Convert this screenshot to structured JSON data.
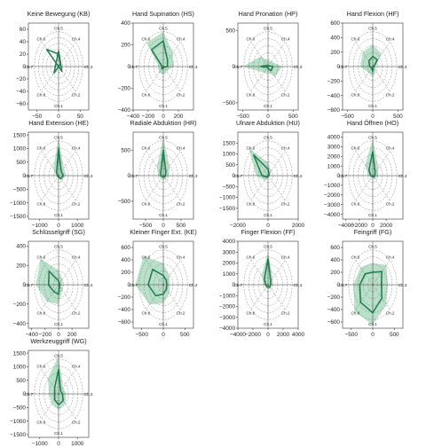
{
  "chart_data": [
    {
      "type": "radar",
      "title": "Keine Bewegung (KB)",
      "axes": [
        "Ch.1",
        "Ch.2",
        "Ch.3",
        "Ch.4",
        "Ch.5",
        "Ch.6",
        "Ch.7",
        "Ch.8"
      ],
      "series": [
        {
          "values": [
            -25,
            11,
            0,
            6,
            20,
            39,
            0,
            15
          ]
        }
      ],
      "band": [],
      "x_ticks": [
        -50,
        0,
        50
      ],
      "xlim": [
        -70,
        70
      ],
      "y_ticks": [
        -60,
        -40,
        -20,
        0,
        20,
        40,
        60
      ],
      "ylim": [
        -70,
        70
      ],
      "grid_rings": 6
    },
    {
      "type": "radar",
      "title": "Hand Supination (HS)",
      "axes": [
        "Ch.1",
        "Ch.2",
        "Ch.3",
        "Ch.4",
        "Ch.5",
        "Ch.6",
        "Ch.7",
        "Ch.8"
      ],
      "series": [
        {
          "values": [
            15,
            10,
            55,
            80,
            235,
            220,
            15,
            30
          ]
        }
      ],
      "band": [
        70,
        60,
        140,
        180,
        320,
        310,
        60,
        80
      ],
      "x_ticks": [
        -400,
        -200,
        0,
        200
      ],
      "xlim": [
        -400,
        400
      ],
      "y_ticks": [
        -400,
        -200,
        0,
        200,
        400
      ],
      "ylim": [
        -400,
        400
      ],
      "grid_rings": 5
    },
    {
      "type": "radar",
      "title": "Hand Pronation (HP)",
      "axes": [
        "Ch.1",
        "Ch.2",
        "Ch.3",
        "Ch.4",
        "Ch.5",
        "Ch.6",
        "Ch.7",
        "Ch.8"
      ],
      "series": [
        {
          "values": [
            25,
            80,
            100,
            15,
            15,
            25,
            150,
            15
          ]
        }
      ],
      "band": [
        80,
        200,
        280,
        100,
        80,
        200,
        500,
        120
      ],
      "x_ticks": [
        -500,
        0,
        500
      ],
      "xlim": [
        -600,
        600
      ],
      "y_ticks": [
        -500,
        0,
        500
      ],
      "ylim": [
        -600,
        600
      ],
      "grid_rings": 5
    },
    {
      "type": "radar",
      "title": "Hand Flexion (HF)",
      "axes": [
        "Ch.1",
        "Ch.2",
        "Ch.3",
        "Ch.4",
        "Ch.5",
        "Ch.6",
        "Ch.7",
        "Ch.8"
      ],
      "series": [
        {
          "values": [
            70,
            15,
            20,
            130,
            140,
            110,
            60,
            30
          ]
        }
      ],
      "band": [
        150,
        80,
        60,
        250,
        300,
        280,
        250,
        120
      ],
      "x_ticks": [
        -500,
        0,
        500
      ],
      "xlim": [
        -600,
        600
      ],
      "y_ticks": [
        -600,
        -400,
        -200,
        0,
        200,
        400,
        600
      ],
      "ylim": [
        -600,
        600
      ],
      "grid_rings": 5
    },
    {
      "type": "radar",
      "title": "Hand Extension (HE)",
      "axes": [
        "Ch.1",
        "Ch.2",
        "Ch.3",
        "Ch.4",
        "Ch.5",
        "Ch.6",
        "Ch.7",
        "Ch.8"
      ],
      "series": [
        {
          "values": [
            50,
            150,
            250,
            200,
            1000,
            150,
            50,
            50
          ]
        }
      ],
      "band": [
        100,
        250,
        400,
        400,
        1400,
        400,
        150,
        100
      ],
      "x_ticks": [
        -1000,
        0,
        1000
      ],
      "xlim": [
        -1600,
        1600
      ],
      "y_ticks": [
        -1500,
        -1000,
        -500,
        0,
        500,
        1000,
        1500
      ],
      "ylim": [
        -1600,
        1600
      ],
      "grid_rings": 5
    },
    {
      "type": "radar",
      "title": "Radiale Abduktion (HR)",
      "axes": [
        "Ch.1",
        "Ch.2",
        "Ch.3",
        "Ch.4",
        "Ch.5",
        "Ch.6",
        "Ch.7",
        "Ch.8"
      ],
      "series": [
        {
          "values": [
            30,
            40,
            60,
            100,
            500,
            100,
            70,
            30
          ]
        }
      ],
      "band": [
        80,
        100,
        150,
        250,
        750,
        250,
        150,
        80
      ],
      "x_ticks": [
        -500,
        0,
        500
      ],
      "xlim": [
        -850,
        850
      ],
      "y_ticks": [
        -500,
        0,
        500
      ],
      "ylim": [
        -850,
        850
      ],
      "grid_rings": 5
    },
    {
      "type": "radar",
      "title": "Ulnare Abduktion (HU)",
      "axes": [
        "Ch.1",
        "Ch.2",
        "Ch.3",
        "Ch.4",
        "Ch.5",
        "Ch.6",
        "Ch.7",
        "Ch.8"
      ],
      "series": [
        {
          "values": [
            50,
            30,
            50,
            100,
            300,
            1350,
            400,
            100
          ]
        }
      ],
      "band": [
        150,
        100,
        150,
        300,
        600,
        1800,
        800,
        300
      ],
      "x_ticks": [
        -2000,
        0,
        2000
      ],
      "xlim": [
        -2000,
        2000
      ],
      "y_ticks": [
        -1500,
        -1000,
        -500,
        0,
        500,
        1000,
        1500
      ],
      "ylim": [
        -2000,
        2000
      ],
      "grid_rings": 5
    },
    {
      "type": "radar",
      "title": "Hand Öffnen (HO)",
      "axes": [
        "Ch.1",
        "Ch.2",
        "Ch.3",
        "Ch.4",
        "Ch.5",
        "Ch.6",
        "Ch.7",
        "Ch.8"
      ],
      "series": [
        {
          "values": [
            100,
            200,
            300,
            500,
            2500,
            800,
            300,
            100
          ]
        }
      ],
      "band": [
        300,
        500,
        800,
        1200,
        3800,
        1600,
        700,
        300
      ],
      "x_ticks": [
        -4000,
        -2000,
        0,
        2000
      ],
      "xlim": [
        -4500,
        4500
      ],
      "y_ticks": [
        -4000,
        -3000,
        -2000,
        -1000,
        0,
        1000,
        2000,
        3000,
        4000
      ],
      "ylim": [
        -4500,
        4500
      ],
      "grid_rings": 5
    },
    {
      "type": "radar",
      "title": "Schlüsselgriff (SG)",
      "axes": [
        "Ch.1",
        "Ch.2",
        "Ch.3",
        "Ch.4",
        "Ch.5",
        "Ch.6",
        "Ch.7",
        "Ch.8"
      ],
      "series": [
        {
          "values": [
            100,
            20,
            20,
            20,
            40,
            200,
            150,
            100
          ]
        }
      ],
      "band": [
        200,
        80,
        60,
        80,
        150,
        380,
        340,
        250
      ],
      "x_ticks": [
        -400,
        -200,
        0,
        200
      ],
      "xlim": [
        -450,
        450
      ],
      "y_ticks": [
        -400,
        -200,
        0,
        200,
        400
      ],
      "ylim": [
        -450,
        450
      ],
      "grid_rings": 5
    },
    {
      "type": "radar",
      "title": "Kleiner Finger Ext. (KE)",
      "axes": [
        "Ch.1",
        "Ch.2",
        "Ch.3",
        "Ch.4",
        "Ch.5",
        "Ch.6",
        "Ch.7",
        "Ch.8"
      ],
      "series": [
        {
          "values": [
            150,
            100,
            80,
            100,
            150,
            350,
            350,
            250
          ]
        }
      ],
      "band": [
        300,
        200,
        150,
        200,
        350,
        650,
        650,
        450
      ],
      "x_ticks": [
        -500,
        0,
        500
      ],
      "xlim": [
        -700,
        700
      ],
      "y_ticks": [
        -600,
        -400,
        -200,
        0,
        200,
        400,
        600
      ],
      "ylim": [
        -700,
        700
      ],
      "grid_rings": 5
    },
    {
      "type": "radar",
      "title": "Finger Flexion (FF)",
      "axes": [
        "Ch.1",
        "Ch.2",
        "Ch.3",
        "Ch.4",
        "Ch.5",
        "Ch.6",
        "Ch.7",
        "Ch.8"
      ],
      "series": [
        {
          "values": [
            200,
            300,
            350,
            500,
            2400,
            700,
            300,
            200
          ]
        }
      ],
      "band": [
        400,
        500,
        600,
        900,
        3000,
        1200,
        600,
        400
      ],
      "x_ticks": [
        -4000,
        -2000,
        0,
        2000,
        4000
      ],
      "xlim": [
        -4000,
        4000
      ],
      "y_ticks": [
        -4000,
        -3000,
        -2000,
        -1000,
        0,
        1000,
        2000,
        3000,
        4000
      ],
      "ylim": [
        -4000,
        4000
      ],
      "grid_rings": 5
    },
    {
      "type": "radar",
      "title": "Feingriff (FG)",
      "axes": [
        "Ch.1",
        "Ch.2",
        "Ch.3",
        "Ch.4",
        "Ch.5",
        "Ch.6",
        "Ch.7",
        "Ch.8"
      ],
      "series": [
        {
          "values": [
            450,
            300,
            200,
            300,
            200,
            250,
            300,
            400
          ]
        }
      ],
      "band": [
        650,
        450,
        350,
        450,
        350,
        400,
        450,
        600
      ],
      "x_ticks": [
        -500,
        0,
        500
      ],
      "xlim": [
        -700,
        700
      ],
      "y_ticks": [
        -600,
        -400,
        -200,
        0,
        200,
        400,
        600
      ],
      "ylim": [
        -700,
        700
      ],
      "grid_rings": 5
    },
    {
      "type": "radar",
      "title": "Werkzeuggriff (WG)",
      "axes": [
        "Ch.1",
        "Ch.2",
        "Ch.3",
        "Ch.4",
        "Ch.5",
        "Ch.6",
        "Ch.7",
        "Ch.8"
      ],
      "series": [
        {
          "values": [
            400,
            350,
            200,
            150,
            900,
            300,
            200,
            300
          ]
        }
      ],
      "band": [
        600,
        500,
        400,
        350,
        1400,
        800,
        500,
        500
      ],
      "x_ticks": [
        -1000,
        0,
        1000
      ],
      "xlim": [
        -1600,
        1600
      ],
      "y_ticks": [
        -1500,
        -1000,
        -500,
        0,
        500,
        1000,
        1500
      ],
      "ylim": [
        -1600,
        1600
      ],
      "grid_rings": 5
    }
  ],
  "colors": {
    "line": "#1f7a4f",
    "band": "#7fc79a",
    "axis": "#333333",
    "grid": "#777777"
  }
}
